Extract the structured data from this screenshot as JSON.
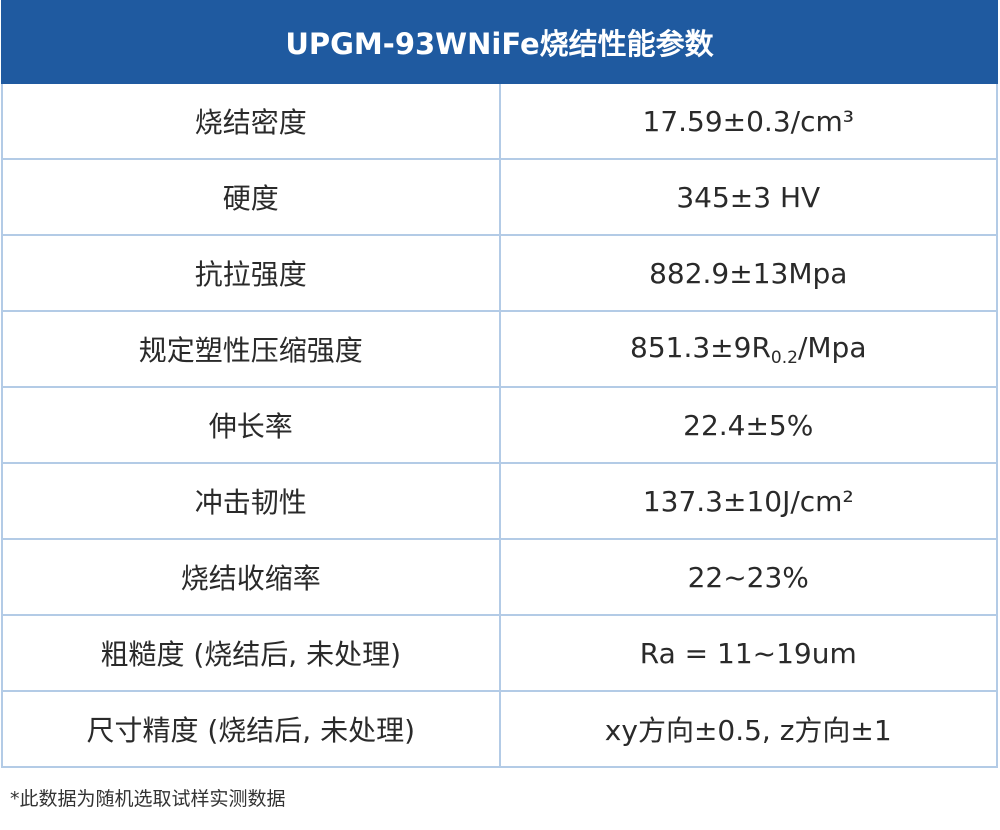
{
  "table": {
    "title": "UPGM-93WNiFe烧结性能参数",
    "rows": [
      [
        "烧结密度",
        "17.59±0.3/cm³"
      ],
      [
        "硬度",
        "345±3 HV"
      ],
      [
        "抗拉强度",
        "882.9±13Mpa"
      ],
      [
        "规定塑性压缩强度",
        [
          "851.3±9R",
          "0.2",
          "/Mpa"
        ]
      ],
      [
        "伸长率",
        "22.4±5%"
      ],
      [
        "冲击韧性",
        "137.3±10J/cm²"
      ],
      [
        "烧结收缩率",
        "22~23%"
      ],
      [
        "粗糙度 (烧结后, 未处理)",
        "Ra = 11~19um"
      ],
      [
        "尺寸精度 (烧结后, 未处理)",
        "xy方向±0.5, z方向±1"
      ]
    ]
  },
  "footnote": "*此数据为随机选取试样实测数据"
}
